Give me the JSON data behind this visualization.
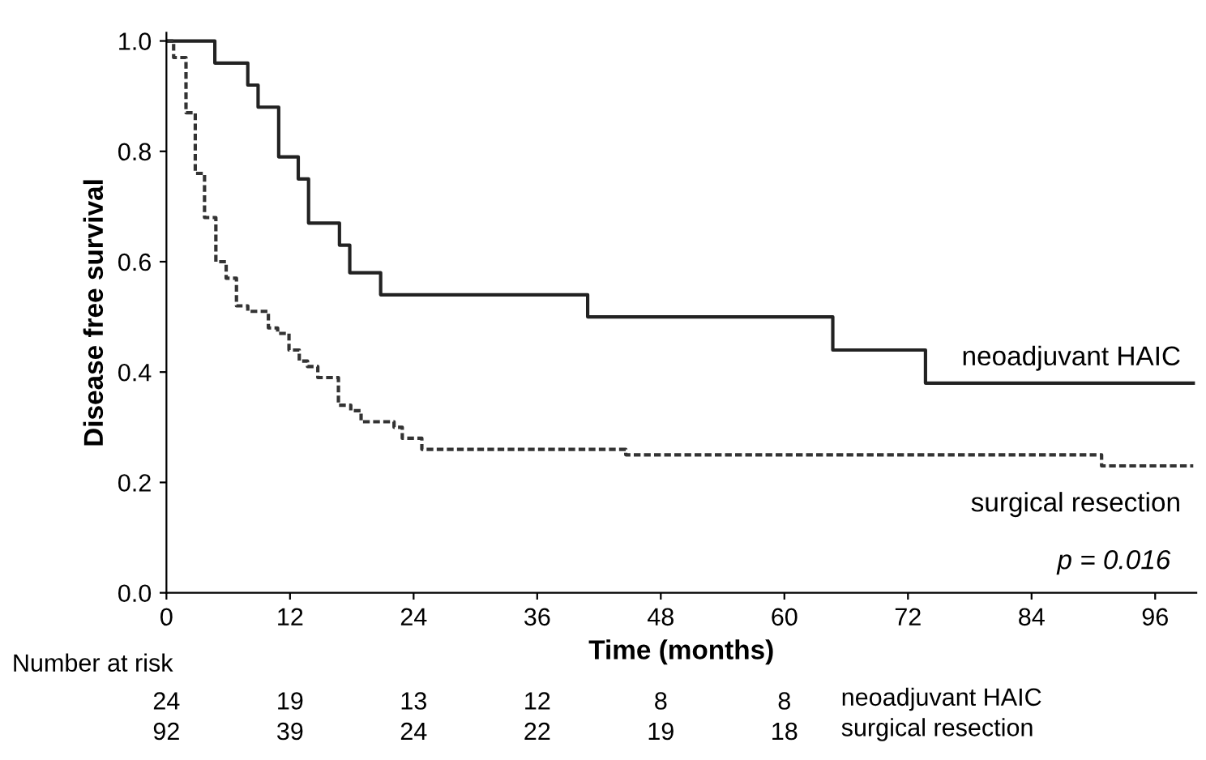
{
  "chart_data": {
    "type": "step",
    "xlabel": "Time (months)",
    "ylabel": "Disease free survival",
    "xlim": [
      0,
      100
    ],
    "xticks": [
      0,
      12,
      24,
      36,
      48,
      60,
      72,
      84,
      96
    ],
    "ylim": [
      0,
      1.015
    ],
    "yticks": [
      {
        "value": 0,
        "label": "0.0"
      },
      {
        "value": 0.2,
        "label": "0.2"
      },
      {
        "value": 0.4,
        "label": "0.4"
      },
      {
        "value": 0.6,
        "label": "0.6"
      },
      {
        "value": 0.8,
        "label": "0.8"
      },
      {
        "value": 1,
        "label": "1.0"
      }
    ],
    "grid": false,
    "legend": false,
    "series": [
      {
        "name": "neoadjuvant HAIC",
        "color": "#222222",
        "line_style": "solid",
        "x": [
          0,
          4.7,
          7.9,
          8.9,
          10.9,
          12.8,
          13.8,
          16.8,
          17.8,
          20.8,
          40.9,
          64.7,
          73.7,
          99.7
        ],
        "values": [
          1.0,
          0.96,
          0.92,
          0.88,
          0.79,
          0.75,
          0.67,
          0.63,
          0.58,
          0.54,
          0.5,
          0.44,
          0.38,
          0.38
        ]
      },
      {
        "name": "surgical resection",
        "color": "#333333",
        "line_style": "dashed",
        "x": [
          0,
          0.7,
          1.9,
          2.8,
          3.7,
          4.8,
          5.8,
          6.8,
          7.9,
          9.9,
          10.8,
          11.9,
          12.9,
          13.7,
          14.7,
          16.7,
          17.9,
          18.9,
          22.1,
          22.9,
          24.8,
          44.6,
          90.8,
          99.7
        ],
        "values": [
          1.0,
          0.97,
          0.87,
          0.76,
          0.68,
          0.6,
          0.57,
          0.52,
          0.51,
          0.48,
          0.47,
          0.44,
          0.42,
          0.41,
          0.39,
          0.34,
          0.33,
          0.31,
          0.3,
          0.28,
          0.26,
          0.25,
          0.23,
          0.23
        ]
      }
    ],
    "annotations": [
      "p = 0.016",
      "Number at risk",
      "24",
      "19",
      "13",
      "12",
      "8",
      "8",
      "neoadjuvant HAIC",
      "92",
      "39",
      "24",
      "22",
      "19",
      "18",
      "surgical resection"
    ]
  }
}
